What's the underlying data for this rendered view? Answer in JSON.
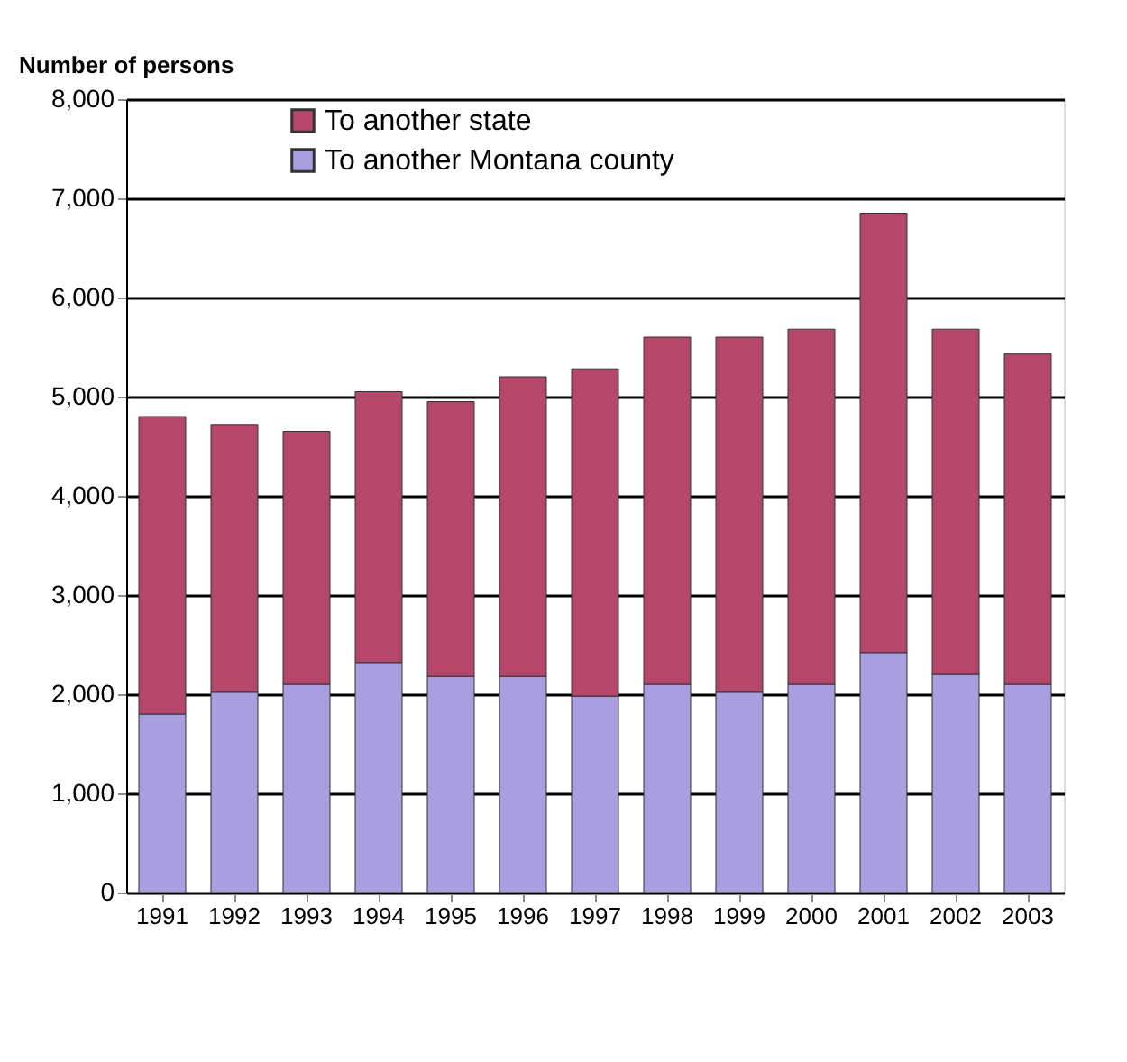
{
  "chart_data": {
    "type": "bar",
    "ylabel": "Number of persons",
    "stacked": true,
    "categories": [
      "1991",
      "1992",
      "1993",
      "1994",
      "1995",
      "1996",
      "1997",
      "1998",
      "1999",
      "2000",
      "2001",
      "2002",
      "2003"
    ],
    "series": [
      {
        "name": "To another Montana county",
        "color": "#a99ee0",
        "values": [
          1800,
          2020,
          2100,
          2320,
          2180,
          2180,
          1980,
          2100,
          2020,
          2100,
          2420,
          2200,
          2100
        ]
      },
      {
        "name": "To another state",
        "color": "#b5476a",
        "values": [
          3000,
          2700,
          2550,
          2730,
          2770,
          3020,
          3300,
          3500,
          3580,
          3580,
          4430,
          3480,
          3330
        ]
      }
    ],
    "ylim": [
      0,
      8000
    ],
    "yticks": [
      0,
      {
        "value": 1000,
        "label": "1,000"
      },
      {
        "value": 2000,
        "label": "2,000"
      },
      {
        "value": 3000,
        "label": "3,000"
      },
      {
        "value": 4000,
        "label": "4,000"
      },
      {
        "value": 5000,
        "label": "5,000"
      },
      {
        "value": 6000,
        "label": "6,000"
      },
      {
        "value": 7000,
        "label": "7,000"
      },
      {
        "value": 8000,
        "label": "8,000"
      }
    ],
    "grid": "y",
    "legend": "top"
  }
}
